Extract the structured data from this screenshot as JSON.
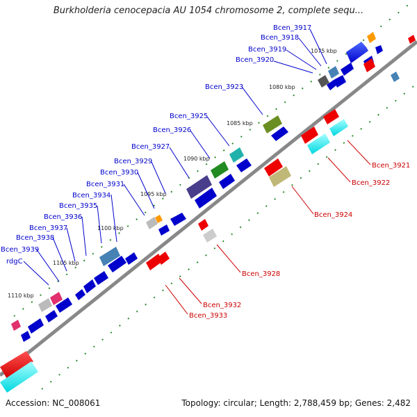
{
  "title": "Burkholderia cenocepacia AU 1054 chromosome 2, complete sequ...",
  "footer": {
    "accession": "Accession: NC_008061",
    "summary": "Topology: circular; Length: 2,788,459 bp; Genes: 2,482"
  },
  "ticks": [
    "1075 kbp",
    "1080 kbp",
    "1085 kbp",
    "1090 kbp",
    "1095 kbp",
    "1100 kbp",
    "1105 kbp",
    "1110 kbp"
  ],
  "genes_top": [
    "Bcen_3917",
    "Bcen_3918",
    "Bcen_3919",
    "Bcen_3920",
    "Bcen_3923",
    "Bcen_3925",
    "Bcen_3926",
    "Bcen_3927",
    "Bcen_3929",
    "Bcen_3930",
    "Bcen_3931",
    "Bcen_3934",
    "Bcen_3935",
    "Bcen_3936",
    "Bcen_3937",
    "Bcen_3938",
    "Bcen_3939",
    "rdgC"
  ],
  "genes_bottom": [
    "Bcen_3921",
    "Bcen_3922",
    "Bcen_3924",
    "Bcen_3928",
    "Bcen_3932",
    "Bcen_3933"
  ],
  "colors": {
    "forward": "#0000ee",
    "reverse": "#ee0000",
    "backbone": "#888888",
    "tick_line": "#2a8a2a",
    "label_blue": "#0000cc",
    "label_red": "#cc0000"
  }
}
